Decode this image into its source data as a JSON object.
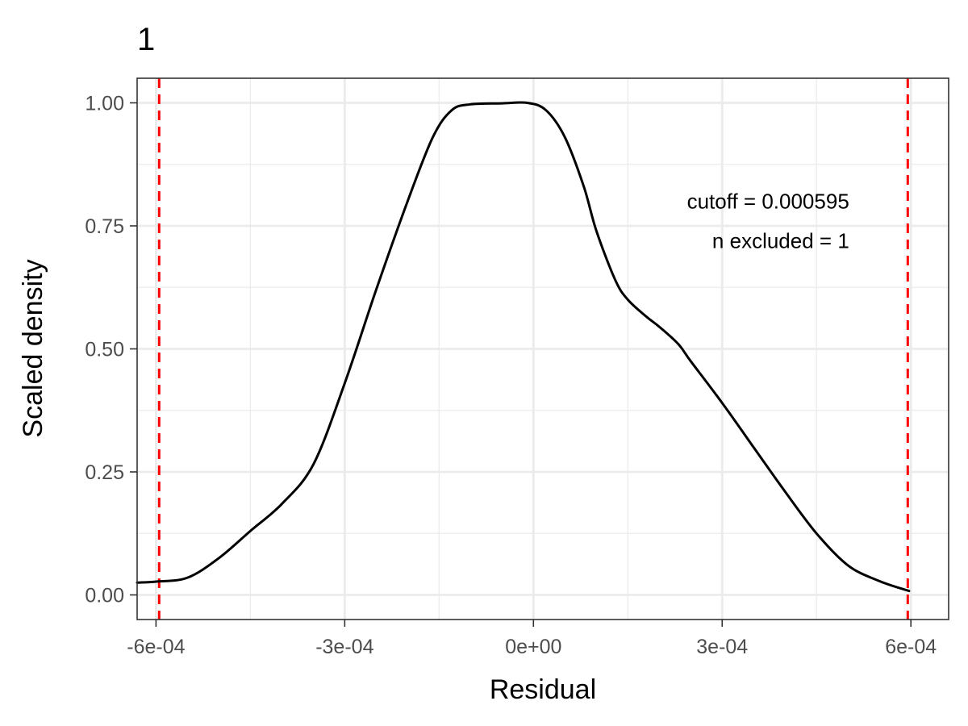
{
  "chart_data": {
    "type": "line",
    "title": "1",
    "xlabel": "Residual",
    "ylabel": "Scaled density",
    "xlim": [
      -0.00063,
      0.00066
    ],
    "ylim": [
      -0.05,
      1.05
    ],
    "x_ticks": [
      -0.0006,
      -0.0003,
      0,
      0.0003,
      0.0006
    ],
    "x_tick_labels": [
      "-6e-04",
      "-3e-04",
      "0e+00",
      "3e-04",
      "6e-04"
    ],
    "x_minor_ticks": [
      -0.00045,
      -0.00015,
      0.00015,
      0.00045
    ],
    "y_ticks": [
      0,
      0.25,
      0.5,
      0.75,
      1
    ],
    "y_tick_labels": [
      "0.00",
      "0.25",
      "0.50",
      "0.75",
      "1.00"
    ],
    "y_minor_ticks": [
      0.125,
      0.375,
      0.625,
      0.875
    ],
    "grid": true,
    "series": [
      {
        "color": "#000000",
        "x": [
          -0.00063,
          -0.0006,
          -0.00055,
          -0.0005,
          -0.00045,
          -0.0004,
          -0.00035,
          -0.0003,
          -0.00025,
          -0.0002,
          -0.00016,
          -0.00013,
          -0.0001,
          -5e-05,
          -1e-05,
          2e-05,
          5e-05,
          8e-05,
          0.0001,
          0.00013,
          0.00015,
          0.00018,
          0.0002,
          0.00023,
          0.00025,
          0.0003,
          0.00035,
          0.0004,
          0.00045,
          0.0005,
          0.00055,
          0.000597
        ],
        "y": [
          0.025,
          0.027,
          0.035,
          0.075,
          0.13,
          0.185,
          0.265,
          0.43,
          0.62,
          0.8,
          0.93,
          0.985,
          0.997,
          0.999,
          1.0,
          0.985,
          0.93,
          0.83,
          0.74,
          0.64,
          0.6,
          0.565,
          0.545,
          0.51,
          0.475,
          0.39,
          0.3,
          0.21,
          0.125,
          0.06,
          0.028,
          0.008
        ]
      }
    ],
    "cutoff_lines": {
      "values": [
        -0.000595,
        0.000595
      ],
      "color": "#ff0000",
      "style": "dashed"
    },
    "annotations": {
      "cutoff_text": "cutoff = 0.000595",
      "excluded_text": "n excluded = 1",
      "anchor_x": 0.000502,
      "cutoff_y": 0.8,
      "excluded_y": 0.72
    }
  }
}
